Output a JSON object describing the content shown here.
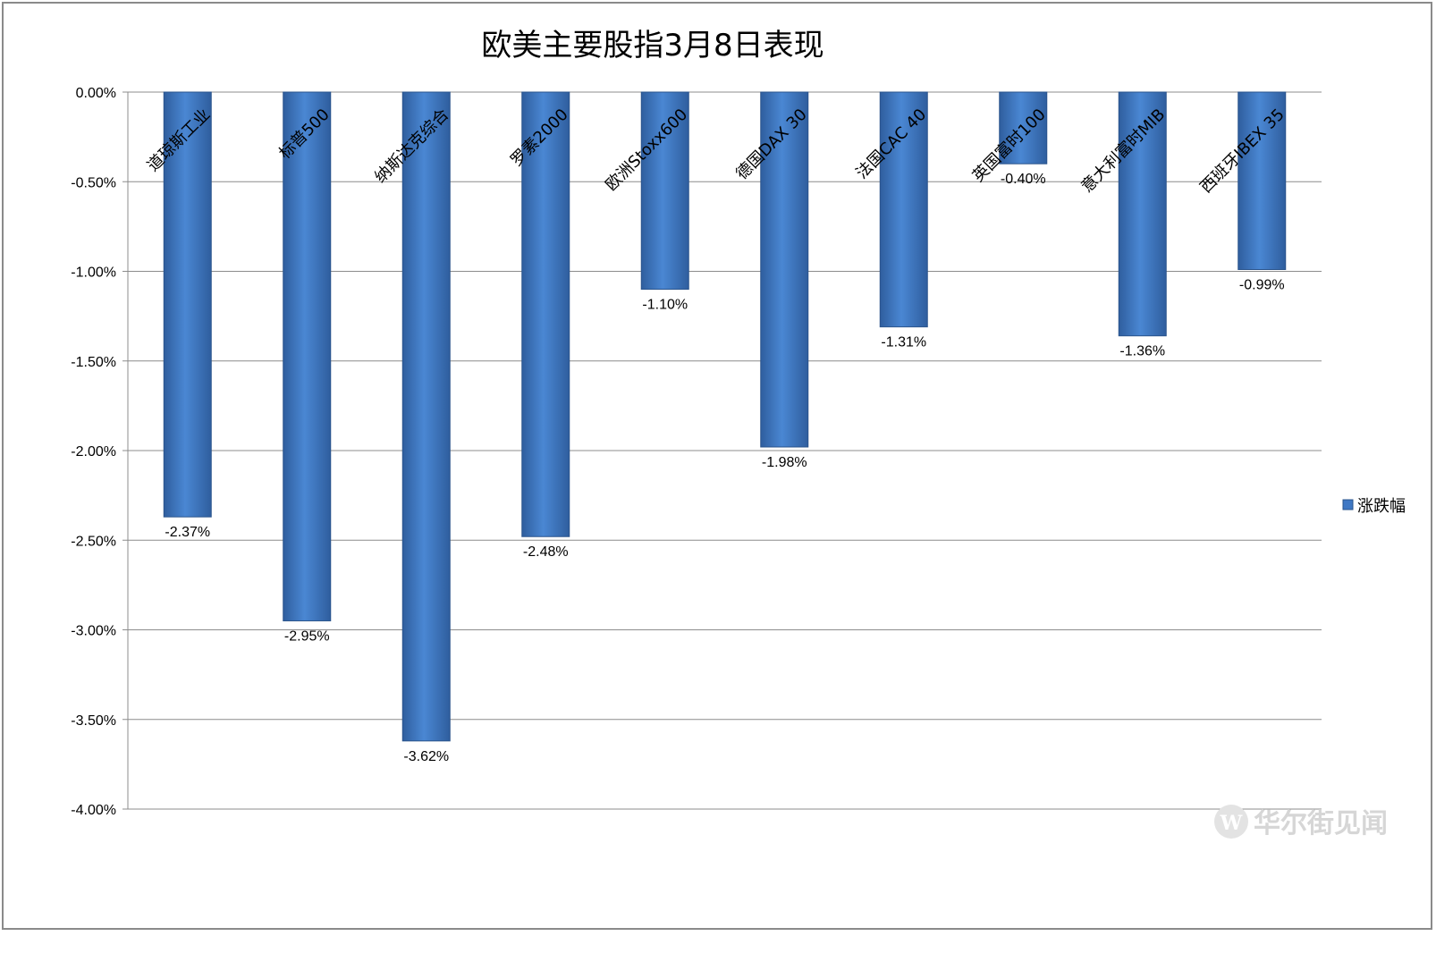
{
  "chart_data": {
    "type": "bar",
    "title": "欧美主要股指3月8日表现",
    "categories": [
      "道琼斯工业",
      "标普500",
      "纳斯达克综合",
      "罗素2000",
      "欧洲Stoxx600",
      "德国DAX 30",
      "法国CAC 40",
      "英国富时100",
      "意大利富时MIB",
      "西班牙IBEX 35"
    ],
    "series": [
      {
        "name": "涨跌幅",
        "values": [
          -2.37,
          -2.95,
          -3.62,
          -2.48,
          -1.1,
          -1.98,
          -1.31,
          -0.4,
          -1.36,
          -0.99
        ],
        "labels": [
          "-2.37%",
          "-2.95%",
          "-3.62%",
          "-2.48%",
          "-1.10%",
          "-1.98%",
          "-1.31%",
          "-0.40%",
          "-1.36%",
          "-0.99%"
        ]
      }
    ],
    "ylim": [
      -4.0,
      0.0
    ],
    "yticks": [
      0.0,
      -0.5,
      -1.0,
      -1.5,
      -2.0,
      -2.5,
      -3.0,
      -3.5,
      -4.0
    ],
    "ytick_labels": [
      "0.00%",
      "-0.50%",
      "-1.00%",
      "-1.50%",
      "-2.00%",
      "-2.50%",
      "-3.00%",
      "-3.50%",
      "-4.00%"
    ],
    "grid": true,
    "legend_position": "right",
    "bar_color": "#3f78c4",
    "watermark": "华尔街见闻"
  }
}
